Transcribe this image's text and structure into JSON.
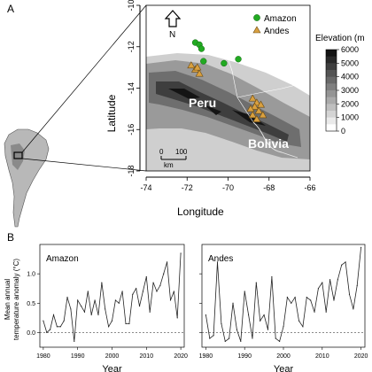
{
  "panel_a": {
    "label": "A",
    "xlabel": "Longitude",
    "ylabel": "Latitude",
    "x_ticks": [
      "-74",
      "-72",
      "-70",
      "-68",
      "-66"
    ],
    "y_ticks": [
      "-10",
      "-12",
      "-14",
      "-16",
      "-18"
    ],
    "north_label": "N",
    "country_labels": [
      "Peru",
      "Bolivia"
    ],
    "scale_labels": [
      "0",
      "100",
      "km"
    ],
    "legend": {
      "amazon": "Amazon",
      "andes": "Andes"
    },
    "elevation": {
      "title": "Elevation (m",
      "ticks": [
        "6000",
        "5000",
        "4000",
        "3000",
        "2000",
        "1000",
        "0"
      ]
    }
  },
  "panel_b": {
    "label": "B",
    "ylabel_line1": "Mean annual",
    "ylabel_line2": "temperature anomaly (°C)"
  },
  "chart_data": [
    {
      "type": "scatter",
      "xlabel": "Longitude",
      "ylabel": "Latitude",
      "xlim": [
        -74,
        -66
      ],
      "ylim": [
        -18,
        -10
      ],
      "series": [
        {
          "name": "Amazon",
          "color": "#22aa22",
          "marker": "circle",
          "points": [
            [
              -71.6,
              -11.8
            ],
            [
              -71.4,
              -11.9
            ],
            [
              -71.3,
              -12.1
            ],
            [
              -71.2,
              -12.7
            ],
            [
              -70.2,
              -12.8
            ],
            [
              -69.5,
              -12.6
            ]
          ]
        },
        {
          "name": "Andes",
          "color": "#d9a040",
          "marker": "triangle",
          "points": [
            [
              -71.8,
              -12.9
            ],
            [
              -71.6,
              -13.1
            ],
            [
              -71.5,
              -13.0
            ],
            [
              -71.4,
              -13.3
            ],
            [
              -68.8,
              -14.5
            ],
            [
              -68.6,
              -14.7
            ],
            [
              -68.7,
              -14.9
            ],
            [
              -68.9,
              -15.0
            ],
            [
              -68.5,
              -15.1
            ],
            [
              -68.8,
              -15.3
            ],
            [
              -68.6,
              -15.5
            ],
            [
              -68.3,
              -15.3
            ],
            [
              -68.4,
              -14.8
            ]
          ]
        }
      ]
    },
    {
      "type": "line",
      "title": "Amazon",
      "xlabel": "Year",
      "ylabel": "Mean annual temperature anomaly (°C)",
      "xlim": [
        1979,
        2021
      ],
      "ylim": [
        -0.25,
        1.5
      ],
      "x_ticks": [
        1980,
        1990,
        2000,
        2010,
        2020
      ],
      "y_ticks": [
        0.0,
        0.5,
        1.0
      ],
      "reference_line": 0,
      "x": [
        1980,
        1981,
        1982,
        1983,
        1984,
        1985,
        1986,
        1987,
        1988,
        1989,
        1990,
        1991,
        1992,
        1993,
        1994,
        1995,
        1996,
        1997,
        1998,
        1999,
        2000,
        2001,
        2002,
        2003,
        2004,
        2005,
        2006,
        2007,
        2008,
        2009,
        2010,
        2011,
        2012,
        2013,
        2014,
        2015,
        2016,
        2017,
        2018,
        2019,
        2020
      ],
      "values": [
        0.2,
        0.0,
        0.05,
        0.3,
        0.1,
        0.1,
        0.2,
        0.6,
        0.4,
        -0.15,
        0.55,
        0.45,
        0.35,
        0.7,
        0.3,
        0.55,
        0.3,
        0.85,
        0.4,
        0.1,
        0.2,
        0.55,
        0.5,
        0.7,
        0.15,
        0.15,
        0.65,
        0.75,
        0.45,
        0.7,
        0.95,
        0.35,
        0.85,
        0.7,
        0.8,
        1.0,
        1.2,
        0.55,
        0.7,
        0.25,
        1.35
      ]
    },
    {
      "type": "line",
      "title": "Andes",
      "xlabel": "Year",
      "xlim": [
        1979,
        2021
      ],
      "ylim": [
        -0.25,
        1.5
      ],
      "x_ticks": [
        1980,
        1990,
        2000,
        2010,
        2020
      ],
      "y_ticks": [
        0.0,
        0.5,
        1.0
      ],
      "reference_line": 0,
      "x": [
        1980,
        1981,
        1982,
        1983,
        1984,
        1985,
        1986,
        1987,
        1988,
        1989,
        1990,
        1991,
        1992,
        1993,
        1994,
        1995,
        1996,
        1997,
        1998,
        1999,
        2000,
        2001,
        2002,
        2003,
        2004,
        2005,
        2006,
        2007,
        2008,
        2009,
        2010,
        2011,
        2012,
        2013,
        2014,
        2015,
        2016,
        2017,
        2018,
        2019,
        2020
      ],
      "values": [
        0.3,
        -0.1,
        -0.05,
        1.2,
        0.15,
        -0.15,
        -0.1,
        0.5,
        0.05,
        -0.15,
        0.7,
        0.3,
        -0.1,
        0.85,
        0.2,
        0.3,
        0.05,
        0.95,
        -0.1,
        -0.15,
        0.1,
        0.6,
        0.5,
        0.6,
        0.2,
        0.1,
        0.6,
        0.55,
        0.35,
        0.75,
        0.85,
        0.35,
        0.9,
        0.55,
        0.9,
        1.15,
        1.2,
        0.65,
        0.4,
        0.8,
        1.45
      ]
    }
  ]
}
